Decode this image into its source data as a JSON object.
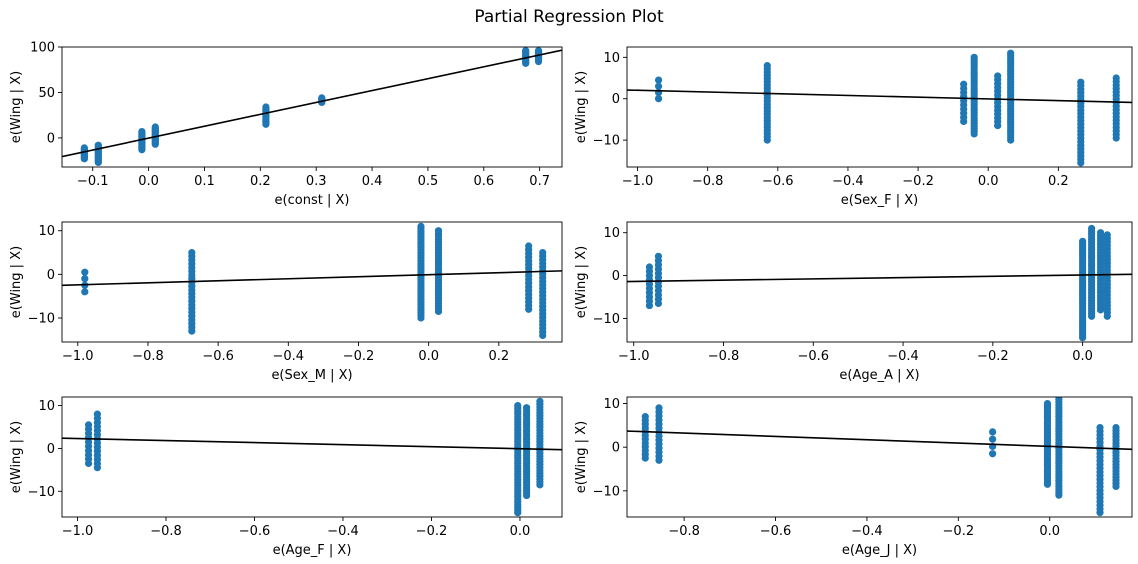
{
  "title": "Partial Regression Plot",
  "colors": {
    "points": "#1f77b4",
    "fit_line": "#000000",
    "background": "#ffffff"
  },
  "chart_data": [
    {
      "type": "scatter",
      "title": "",
      "xlabel": "e(const | X)",
      "ylabel": "e(Wing | X)",
      "xlim": [
        -0.155,
        0.74
      ],
      "ylim": [
        -32,
        100
      ],
      "xticks": [
        -0.1,
        0.0,
        0.1,
        0.2,
        0.3,
        0.4,
        0.5,
        0.6,
        0.7
      ],
      "xtick_labels": [
        "−0.1",
        "0.0",
        "0.1",
        "0.2",
        "0.3",
        "0.4",
        "0.5",
        "0.6",
        "0.7"
      ],
      "yticks": [
        0,
        50,
        100
      ],
      "ytick_labels": [
        "0",
        "50",
        "100"
      ],
      "grid": false,
      "clusters": [
        {
          "x": -0.115,
          "y_min": -23,
          "y_max": -11,
          "n": 12
        },
        {
          "x": -0.09,
          "y_min": -27,
          "y_max": -8,
          "n": 14
        },
        {
          "x": -0.012,
          "y_min": -13,
          "y_max": 7,
          "n": 16
        },
        {
          "x": 0.012,
          "y_min": -7,
          "y_max": 12,
          "n": 16
        },
        {
          "x": 0.21,
          "y_min": 15,
          "y_max": 34,
          "n": 12
        },
        {
          "x": 0.31,
          "y_min": 39,
          "y_max": 44,
          "n": 6
        },
        {
          "x": 0.675,
          "y_min": 82,
          "y_max": 96,
          "n": 12
        },
        {
          "x": 0.698,
          "y_min": 84,
          "y_max": 96,
          "n": 12
        }
      ],
      "fit_line": {
        "x": [
          -0.155,
          0.74
        ],
        "y": [
          -20.5,
          96.5
        ]
      }
    },
    {
      "type": "scatter",
      "title": "",
      "xlabel": "e(Sex_F | X)",
      "ylabel": "e(Wing | X)",
      "xlim": [
        -1.03,
        0.41
      ],
      "ylim": [
        -16.5,
        12.5
      ],
      "xticks": [
        -1.0,
        -0.8,
        -0.6,
        -0.4,
        -0.2,
        0.0,
        0.2
      ],
      "xtick_labels": [
        "−1.0",
        "−0.8",
        "−0.6",
        "−0.4",
        "−0.2",
        "0.0",
        "0.2"
      ],
      "yticks": [
        -10,
        0,
        10
      ],
      "ytick_labels": [
        "−10",
        "0",
        "10"
      ],
      "grid": false,
      "clusters": [
        {
          "x": -0.94,
          "y_min": 0,
          "y_max": 4.5,
          "n": 4
        },
        {
          "x": -0.63,
          "y_min": -10,
          "y_max": 8,
          "n": 24
        },
        {
          "x": -0.07,
          "y_min": -5.5,
          "y_max": 3.5,
          "n": 10
        },
        {
          "x": -0.04,
          "y_min": -8.5,
          "y_max": 10,
          "n": 30
        },
        {
          "x": 0.027,
          "y_min": -6.5,
          "y_max": 5.5,
          "n": 14
        },
        {
          "x": 0.064,
          "y_min": -10,
          "y_max": 11,
          "n": 34
        },
        {
          "x": 0.264,
          "y_min": -15.5,
          "y_max": 4,
          "n": 24
        },
        {
          "x": 0.365,
          "y_min": -9.5,
          "y_max": 5,
          "n": 18
        }
      ],
      "fit_line": {
        "x": [
          -1.03,
          0.41
        ],
        "y": [
          2.1,
          -0.9
        ]
      }
    },
    {
      "type": "scatter",
      "title": "",
      "xlabel": "e(Sex_M | X)",
      "ylabel": "e(Wing | X)",
      "xlim": [
        -1.045,
        0.38
      ],
      "ylim": [
        -15.5,
        12
      ],
      "xticks": [
        -1.0,
        -0.8,
        -0.6,
        -0.4,
        -0.2,
        0.0,
        0.2
      ],
      "xtick_labels": [
        "−1.0",
        "−0.8",
        "−0.6",
        "−0.4",
        "−0.2",
        "0.0",
        "0.2"
      ],
      "yticks": [
        -10,
        0,
        10
      ],
      "ytick_labels": [
        "−10",
        "0",
        "10"
      ],
      "grid": false,
      "clusters": [
        {
          "x": -0.98,
          "y_min": -4,
          "y_max": 0.5,
          "n": 4
        },
        {
          "x": -0.675,
          "y_min": -13,
          "y_max": 5,
          "n": 22
        },
        {
          "x": -0.022,
          "y_min": -10,
          "y_max": 11,
          "n": 36
        },
        {
          "x": 0.028,
          "y_min": -8.5,
          "y_max": 10,
          "n": 30
        },
        {
          "x": 0.285,
          "y_min": -8,
          "y_max": 6.5,
          "n": 18
        },
        {
          "x": 0.325,
          "y_min": -14,
          "y_max": 5,
          "n": 24
        }
      ],
      "fit_line": {
        "x": [
          -1.045,
          0.38
        ],
        "y": [
          -2.5,
          0.8
        ]
      }
    },
    {
      "type": "scatter",
      "title": "",
      "xlabel": "e(Age_A | X)",
      "ylabel": "e(Wing | X)",
      "xlim": [
        -1.015,
        0.11
      ],
      "ylim": [
        -15.5,
        12.5
      ],
      "xticks": [
        -1.0,
        -0.8,
        -0.6,
        -0.4,
        -0.2,
        0.0
      ],
      "xtick_labels": [
        "−1.0",
        "−0.8",
        "−0.6",
        "−0.4",
        "−0.2",
        "0.0"
      ],
      "yticks": [
        -10,
        0,
        10
      ],
      "ytick_labels": [
        "−10",
        "0",
        "10"
      ],
      "grid": false,
      "clusters": [
        {
          "x": -0.965,
          "y_min": -7,
          "y_max": 2,
          "n": 10
        },
        {
          "x": -0.945,
          "y_min": -6.5,
          "y_max": 4.5,
          "n": 12
        },
        {
          "x": 0.0,
          "y_min": -14.5,
          "y_max": 8,
          "n": 40
        },
        {
          "x": 0.02,
          "y_min": -9.5,
          "y_max": 11,
          "n": 34
        },
        {
          "x": 0.04,
          "y_min": -8,
          "y_max": 10,
          "n": 28
        },
        {
          "x": 0.055,
          "y_min": -9.5,
          "y_max": 9.5,
          "n": 24
        }
      ],
      "fit_line": {
        "x": [
          -1.015,
          0.11
        ],
        "y": [
          -1.4,
          0.3
        ]
      }
    },
    {
      "type": "scatter",
      "title": "",
      "xlabel": "e(Age_F | X)",
      "ylabel": "e(Wing | X)",
      "xlim": [
        -1.035,
        0.095
      ],
      "ylim": [
        -16,
        12
      ],
      "xticks": [
        -1.0,
        -0.8,
        -0.6,
        -0.4,
        -0.2,
        0.0
      ],
      "xtick_labels": [
        "−1.0",
        "−0.8",
        "−0.6",
        "−0.4",
        "−0.2",
        "0.0"
      ],
      "yticks": [
        -10,
        0,
        10
      ],
      "ytick_labels": [
        "−10",
        "0",
        "10"
      ],
      "grid": false,
      "clusters": [
        {
          "x": -0.975,
          "y_min": -3.5,
          "y_max": 5.5,
          "n": 10
        },
        {
          "x": -0.955,
          "y_min": -4.5,
          "y_max": 8,
          "n": 14
        },
        {
          "x": -0.005,
          "y_min": -15,
          "y_max": 10,
          "n": 40
        },
        {
          "x": 0.015,
          "y_min": -11,
          "y_max": 9.5,
          "n": 34
        },
        {
          "x": 0.045,
          "y_min": -8.5,
          "y_max": 11,
          "n": 30
        }
      ],
      "fit_line": {
        "x": [
          -1.035,
          0.095
        ],
        "y": [
          2.4,
          -0.3
        ]
      }
    },
    {
      "type": "scatter",
      "title": "",
      "xlabel": "e(Age_J | X)",
      "ylabel": "e(Wing | X)",
      "xlim": [
        -0.925,
        0.18
      ],
      "ylim": [
        -16,
        11.5
      ],
      "xticks": [
        -0.8,
        -0.6,
        -0.4,
        -0.2,
        0.0
      ],
      "xtick_labels": [
        "−0.8",
        "−0.6",
        "−0.4",
        "−0.2",
        "0.0"
      ],
      "yticks": [
        -10,
        0,
        10
      ],
      "ytick_labels": [
        "−10",
        "0",
        "10"
      ],
      "grid": false,
      "clusters": [
        {
          "x": -0.885,
          "y_min": -2.5,
          "y_max": 7,
          "n": 12
        },
        {
          "x": -0.855,
          "y_min": -3,
          "y_max": 9,
          "n": 14
        },
        {
          "x": -0.125,
          "y_min": -1.5,
          "y_max": 3.5,
          "n": 4
        },
        {
          "x": -0.005,
          "y_min": -8.5,
          "y_max": 10,
          "n": 38
        },
        {
          "x": 0.02,
          "y_min": -11,
          "y_max": 11,
          "n": 34
        },
        {
          "x": 0.11,
          "y_min": -15,
          "y_max": 4.5,
          "n": 24
        },
        {
          "x": 0.145,
          "y_min": -9,
          "y_max": 4.5,
          "n": 20
        }
      ],
      "fit_line": {
        "x": [
          -0.925,
          0.18
        ],
        "y": [
          3.7,
          -0.5
        ]
      }
    }
  ]
}
